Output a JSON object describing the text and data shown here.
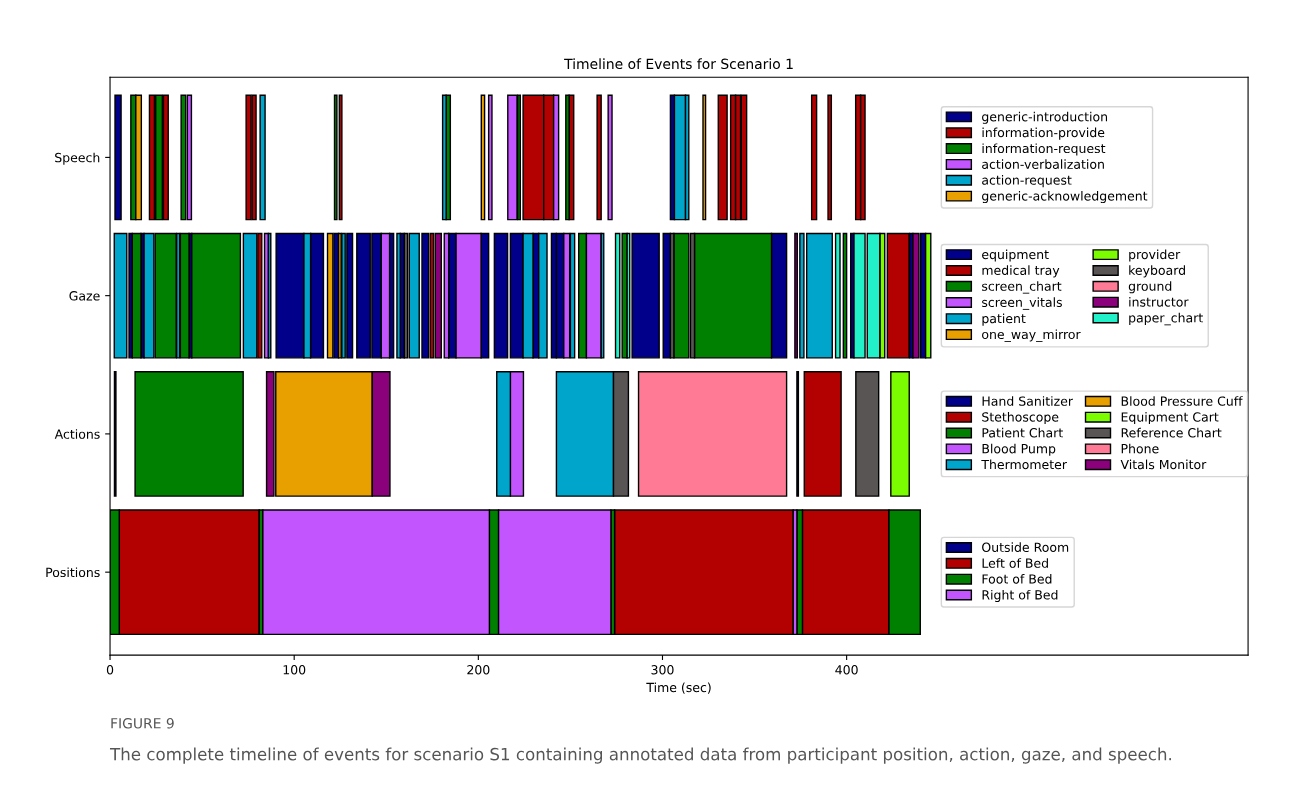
{
  "chart_data": {
    "type": "bar",
    "orientation": "horizontal",
    "title": "Timeline of Events for Scenario 1",
    "xlabel": "Time (sec)",
    "categories": [
      "Speech",
      "Gaze",
      "Actions",
      "Positions"
    ],
    "xlim": [
      0,
      618
    ],
    "xticks": [
      0,
      100,
      200,
      300,
      400
    ],
    "grid": false,
    "legend": "right",
    "annotations": [
      "FIGURE 9",
      "The complete timeline of events for scenario S1 containing annotated data from participant position, action, gaze, and speech."
    ],
    "series": [
      {
        "name": "generic-introduction",
        "color": "#00008b",
        "base": [
          2.7,
          null,
          null,
          null
        ],
        "values": [
          3.3,
          null,
          null,
          null
        ]
      },
      {
        "color": "#00008b",
        "base": [
          304.3,
          null,
          null,
          null
        ],
        "values": [
          2.2,
          null,
          null,
          null
        ]
      },
      {
        "name": "information-provide",
        "color": "#b30000",
        "base": [
          21.4,
          null,
          null,
          null
        ],
        "values": [
          2.7,
          null,
          null,
          null
        ]
      },
      {
        "color": "#b30000",
        "base": [
          29,
          null,
          null,
          null
        ],
        "values": [
          2.6,
          null,
          null,
          null
        ]
      },
      {
        "color": "#b30000",
        "base": [
          73.9,
          null,
          null,
          null
        ],
        "values": [
          2.7,
          null,
          null,
          null
        ]
      },
      {
        "color": "#b30000",
        "base": [
          77.2,
          null,
          null,
          null
        ],
        "values": [
          2.1,
          null,
          null,
          null
        ]
      },
      {
        "color": "#b30000",
        "base": [
          124.5,
          null,
          null,
          null
        ],
        "values": [
          1.4,
          null,
          null,
          null
        ]
      },
      {
        "color": "#b30000",
        "base": [
          224.3,
          null,
          null,
          null
        ],
        "values": [
          11.2,
          null,
          null,
          null
        ]
      },
      {
        "color": "#b30000",
        "base": [
          235.5,
          null,
          null,
          null
        ],
        "values": [
          5.4,
          null,
          null,
          null
        ]
      },
      {
        "color": "#b30000",
        "base": [
          249.3,
          null,
          null,
          null
        ],
        "values": [
          2.5,
          null,
          null,
          null
        ]
      },
      {
        "color": "#b30000",
        "base": [
          264.5,
          null,
          null,
          null
        ],
        "values": [
          2.2,
          null,
          null,
          null
        ]
      },
      {
        "color": "#b30000",
        "base": [
          330.3,
          null,
          null,
          null
        ],
        "values": [
          4.8,
          null,
          null,
          null
        ]
      },
      {
        "color": "#b30000",
        "base": [
          337,
          null,
          null,
          null
        ],
        "values": [
          2.7,
          null,
          null,
          null
        ]
      },
      {
        "color": "#b30000",
        "base": [
          339.7,
          null,
          null,
          null
        ],
        "values": [
          2.7,
          null,
          null,
          null
        ]
      },
      {
        "color": "#b30000",
        "base": [
          342.8,
          null,
          null,
          null
        ],
        "values": [
          2.9,
          null,
          null,
          null
        ]
      },
      {
        "color": "#b30000",
        "base": [
          381,
          null,
          null,
          null
        ],
        "values": [
          2.7,
          null,
          null,
          null
        ]
      },
      {
        "color": "#b30000",
        "base": [
          389.9,
          null,
          null,
          null
        ],
        "values": [
          1.8,
          null,
          null,
          null
        ]
      },
      {
        "color": "#b30000",
        "base": [
          404.9,
          null,
          null,
          null
        ],
        "values": [
          2.7,
          null,
          null,
          null
        ]
      },
      {
        "color": "#b30000",
        "base": [
          407.6,
          null,
          null,
          null
        ],
        "values": [
          2.4,
          null,
          null,
          null
        ]
      },
      {
        "name": "information-request",
        "color": "#008000",
        "base": [
          11.3,
          null,
          null,
          null
        ],
        "values": [
          2.7,
          null,
          null,
          null
        ]
      },
      {
        "color": "#008000",
        "base": [
          24.8,
          null,
          null,
          null
        ],
        "values": [
          3.6,
          null,
          null,
          null
        ]
      },
      {
        "color": "#008000",
        "base": [
          38.6,
          null,
          null,
          null
        ],
        "values": [
          2.5,
          null,
          null,
          null
        ]
      },
      {
        "color": "#008000",
        "base": [
          121.9,
          null,
          null,
          null
        ],
        "values": [
          1.3,
          null,
          null,
          null
        ]
      },
      {
        "color": "#008000",
        "base": [
          182.5,
          null,
          null,
          null
        ],
        "values": [
          2.3,
          null,
          null,
          null
        ]
      },
      {
        "color": "#008000",
        "base": [
          221.4,
          null,
          null,
          null
        ],
        "values": [
          1.4,
          null,
          null,
          null
        ]
      },
      {
        "color": "#008000",
        "base": [
          247.5,
          null,
          null,
          null
        ],
        "values": [
          1.8,
          null,
          null,
          null
        ]
      },
      {
        "name": "action-verbalization",
        "color": "#c355ff",
        "base": [
          42,
          null,
          null,
          null
        ],
        "values": [
          2.2,
          null,
          null,
          null
        ]
      },
      {
        "color": "#c355ff",
        "base": [
          205.6,
          null,
          null,
          null
        ],
        "values": [
          1.8,
          null,
          null,
          null
        ]
      },
      {
        "color": "#c355ff",
        "base": [
          216,
          null,
          null,
          null
        ],
        "values": [
          5,
          null,
          null,
          null
        ]
      },
      {
        "color": "#c355ff",
        "base": [
          240.9,
          null,
          null,
          null
        ],
        "values": [
          2.7,
          null,
          null,
          null
        ]
      },
      {
        "color": "#c355ff",
        "base": [
          270.5,
          null,
          null,
          null
        ],
        "values": [
          2.1,
          null,
          null,
          null
        ]
      },
      {
        "name": "action-request",
        "color": "#00a5cc",
        "base": [
          81.5,
          null,
          null,
          null
        ],
        "values": [
          2.7,
          null,
          null,
          null
        ]
      },
      {
        "color": "#00a5cc",
        "base": [
          180.6,
          null,
          null,
          null
        ],
        "values": [
          1.9,
          null,
          null,
          null
        ]
      },
      {
        "color": "#00a5cc",
        "base": [
          306.5,
          null,
          null,
          null
        ],
        "values": [
          6,
          null,
          null,
          null
        ]
      },
      {
        "color": "#00a5cc",
        "base": [
          312.5,
          null,
          null,
          null
        ],
        "values": [
          1.8,
          null,
          null,
          null
        ]
      },
      {
        "name": "generic-acknowledgement",
        "color": "#e8a000",
        "base": [
          14,
          null,
          null,
          null
        ],
        "values": [
          3,
          null,
          null,
          null
        ]
      },
      {
        "color": "#e8a000",
        "base": [
          201.6,
          null,
          null,
          null
        ],
        "values": [
          1.8,
          null,
          null,
          null
        ]
      },
      {
        "color": "#e8a000",
        "base": [
          322,
          null,
          null,
          null
        ],
        "values": [
          1.4,
          null,
          null,
          null
        ]
      },
      {
        "name": "equipment",
        "color": "#00008b",
        "base": [
          null,
          10.3,
          null,
          null
        ],
        "values": [
          null,
          1.8,
          null,
          null
        ]
      },
      {
        "color": "#00008b",
        "base": [
          null,
          16.8,
          null,
          null
        ],
        "values": [
          null,
          1.7,
          null,
          null
        ]
      },
      {
        "color": "#00008b",
        "base": [
          null,
          42.9,
          null,
          null
        ],
        "values": [
          null,
          1.5,
          null,
          null
        ]
      },
      {
        "color": "#00008b",
        "base": [
          null,
          90.2,
          null,
          null
        ],
        "values": [
          null,
          15.1,
          null,
          null
        ]
      },
      {
        "color": "#00008b",
        "base": [
          null,
          108.9,
          null,
          null
        ],
        "values": [
          null,
          7,
          null,
          null
        ]
      },
      {
        "color": "#00008b",
        "base": [
          null,
          121.6,
          null,
          null
        ],
        "values": [
          null,
          2.5,
          null,
          null
        ]
      },
      {
        "color": "#00008b",
        "base": [
          null,
          128.6,
          null,
          null
        ],
        "values": [
          null,
          3.1,
          null,
          null
        ]
      },
      {
        "color": "#00008b",
        "base": [
          null,
          134,
          null,
          null
        ],
        "values": [
          null,
          7.3,
          null,
          null
        ]
      },
      {
        "color": "#00008b",
        "base": [
          null,
          142.2,
          null,
          null
        ],
        "values": [
          null,
          5.1,
          null,
          null
        ]
      },
      {
        "color": "#00008b",
        "base": [
          null,
          151.8,
          null,
          null
        ],
        "values": [
          null,
          2.2,
          null,
          null
        ]
      },
      {
        "color": "#00008b",
        "base": [
          null,
          157.6,
          null,
          null
        ],
        "values": [
          null,
          2.2,
          null,
          null
        ]
      },
      {
        "color": "#00008b",
        "base": [
          null,
          169.4,
          null,
          null
        ],
        "values": [
          null,
          3.6,
          null,
          null
        ]
      },
      {
        "color": "#00008b",
        "base": [
          null,
          183.9,
          null,
          null
        ],
        "values": [
          null,
          4,
          null,
          null
        ]
      },
      {
        "color": "#00008b",
        "base": [
          null,
          201.5,
          null,
          null
        ],
        "values": [
          null,
          4.1,
          null,
          null
        ]
      },
      {
        "color": "#00008b",
        "base": [
          null,
          208.7,
          null,
          null
        ],
        "values": [
          null,
          7.2,
          null,
          null
        ]
      },
      {
        "color": "#00008b",
        "base": [
          null,
          217.4,
          null,
          null
        ],
        "values": [
          null,
          6.9,
          null,
          null
        ]
      },
      {
        "color": "#00008b",
        "base": [
          null,
          229.7,
          null,
          null
        ],
        "values": [
          null,
          3.1,
          null,
          null
        ]
      },
      {
        "color": "#00008b",
        "base": [
          null,
          239.7,
          null,
          null
        ],
        "values": [
          null,
          2.7,
          null,
          null
        ]
      },
      {
        "color": "#00008b",
        "base": [
          null,
          242.4,
          null,
          null
        ],
        "values": [
          null,
          4,
          null,
          null
        ]
      },
      {
        "color": "#00008b",
        "base": [
          null,
          283.5,
          null,
          null
        ],
        "values": [
          null,
          14.7,
          null,
          null
        ]
      },
      {
        "color": "#00008b",
        "base": [
          null,
          300.4,
          null,
          null
        ],
        "values": [
          null,
          3.9,
          null,
          null
        ]
      },
      {
        "color": "#00008b",
        "base": [
          null,
          359.2,
          null,
          null
        ],
        "values": [
          null,
          8.2,
          null,
          null
        ]
      },
      {
        "color": "#00008b",
        "base": [
          null,
          402.2,
          null,
          null
        ],
        "values": [
          null,
          1.8,
          null,
          null
        ]
      },
      {
        "color": "#00008b",
        "base": [
          null,
          434.2,
          null,
          null
        ],
        "values": [
          null,
          1.8,
          null,
          null
        ]
      },
      {
        "color": "#00008b",
        "base": [
          null,
          440.2,
          null,
          null
        ],
        "values": [
          null,
          2.7,
          null,
          null
        ]
      },
      {
        "name": "medical tray",
        "color": "#b30000",
        "base": [
          null,
          80.3,
          null,
          null
        ],
        "values": [
          null,
          2.1,
          null,
          null
        ]
      },
      {
        "color": "#b30000",
        "base": [
          null,
          173.9,
          null,
          null
        ],
        "values": [
          null,
          1.8,
          null,
          null
        ]
      },
      {
        "color": "#b30000",
        "base": [
          null,
          422.1,
          null,
          null
        ],
        "values": [
          null,
          11.8,
          null,
          null
        ]
      },
      {
        "name": "screen_chart",
        "color": "#008000",
        "base": [
          null,
          12.1,
          null,
          null
        ],
        "values": [
          null,
          4.7,
          null,
          null
        ]
      },
      {
        "color": "#008000",
        "base": [
          null,
          24.5,
          null,
          null
        ],
        "values": [
          null,
          11.4,
          null,
          null
        ]
      },
      {
        "color": "#008000",
        "base": [
          null,
          38.2,
          null,
          null
        ],
        "values": [
          null,
          4.7,
          null,
          null
        ]
      },
      {
        "color": "#008000",
        "base": [
          null,
          44.4,
          null,
          null
        ],
        "values": [
          null,
          26.4,
          null,
          null
        ]
      },
      {
        "color": "#008000",
        "base": [
          null,
          254.5,
          null,
          null
        ],
        "values": [
          null,
          4.2,
          null,
          null
        ]
      },
      {
        "color": "#008000",
        "base": [
          null,
          278.1,
          null,
          null
        ],
        "values": [
          null,
          2.7,
          null,
          null
        ]
      },
      {
        "color": "#008000",
        "base": [
          null,
          306.2,
          null,
          null
        ],
        "values": [
          null,
          8.1,
          null,
          null
        ]
      },
      {
        "color": "#008000",
        "base": [
          null,
          317.4,
          null,
          null
        ],
        "values": [
          null,
          41.8,
          null,
          null
        ]
      },
      {
        "color": "#008000",
        "base": [
          null,
          398.2,
          null,
          null
        ],
        "values": [
          null,
          1.8,
          null,
          null
        ]
      },
      {
        "name": "screen_vitals",
        "color": "#c355ff",
        "base": [
          null,
          83.9,
          null,
          null
        ],
        "values": [
          null,
          2.1,
          null,
          null
        ]
      },
      {
        "color": "#c355ff",
        "base": [
          null,
          147.3,
          null,
          null
        ],
        "values": [
          null,
          4.5,
          null,
          null
        ]
      },
      {
        "color": "#c355ff",
        "base": [
          null,
          181.5,
          null,
          null
        ],
        "values": [
          null,
          2.4,
          null,
          null
        ]
      },
      {
        "color": "#c355ff",
        "base": [
          null,
          187.9,
          null,
          null
        ],
        "values": [
          null,
          13.6,
          null,
          null
        ]
      },
      {
        "color": "#c355ff",
        "base": [
          null,
          246.4,
          null,
          null
        ],
        "values": [
          null,
          3.2,
          null,
          null
        ]
      },
      {
        "color": "#c355ff",
        "base": [
          null,
          258.7,
          null,
          null
        ],
        "values": [
          null,
          8,
          null,
          null
        ]
      },
      {
        "name": "patient",
        "color": "#00a5cc",
        "base": [
          null,
          2.3,
          null,
          null
        ],
        "values": [
          null,
          6.8,
          null,
          null
        ]
      },
      {
        "color": "#00a5cc",
        "base": [
          null,
          18.5,
          null,
          null
        ],
        "values": [
          null,
          5.3,
          null,
          null
        ]
      },
      {
        "color": "#00a5cc",
        "base": [
          null,
          36.2,
          null,
          null
        ],
        "values": [
          null,
          1.6,
          null,
          null
        ]
      },
      {
        "color": "#00a5cc",
        "base": [
          null,
          72.4,
          null,
          null
        ],
        "values": [
          null,
          7.3,
          null,
          null
        ]
      },
      {
        "color": "#00a5cc",
        "base": [
          null,
          86,
          null,
          null
        ],
        "values": [
          null,
          1.3,
          null,
          null
        ]
      },
      {
        "color": "#00a5cc",
        "base": [
          null,
          105.3,
          null,
          null
        ],
        "values": [
          null,
          3.6,
          null,
          null
        ]
      },
      {
        "color": "#00a5cc",
        "base": [
          null,
          125.9,
          null,
          null
        ],
        "values": [
          null,
          1.8,
          null,
          null
        ]
      },
      {
        "color": "#00a5cc",
        "base": [
          null,
          155.8,
          null,
          null
        ],
        "values": [
          null,
          1.8,
          null,
          null
        ]
      },
      {
        "color": "#00a5cc",
        "base": [
          null,
          162.5,
          null,
          null
        ],
        "values": [
          null,
          5.4,
          null,
          null
        ]
      },
      {
        "color": "#00a5cc",
        "base": [
          null,
          224.3,
          null,
          null
        ],
        "values": [
          null,
          5.4,
          null,
          null
        ]
      },
      {
        "color": "#00a5cc",
        "base": [
          null,
          232.8,
          null,
          null
        ],
        "values": [
          null,
          4.5,
          null,
          null
        ]
      },
      {
        "color": "#00a5cc",
        "base": [
          null,
          250,
          null,
          null
        ],
        "values": [
          null,
          2.3,
          null,
          null
        ]
      },
      {
        "color": "#00a5cc",
        "base": [
          null,
          266.7,
          null,
          null
        ],
        "values": [
          null,
          1.4,
          null,
          null
        ]
      },
      {
        "color": "#00a5cc",
        "base": [
          null,
          374.6,
          null,
          null
        ],
        "values": [
          null,
          2.2,
          null,
          null
        ]
      },
      {
        "color": "#00a5cc",
        "base": [
          null,
          378.3,
          null,
          null
        ],
        "values": [
          null,
          13.9,
          null,
          null
        ]
      },
      {
        "name": "one_way_mirror",
        "color": "#e8a000",
        "base": [
          null,
          118.1,
          null,
          null
        ],
        "values": [
          null,
          2.9,
          null,
          null
        ]
      },
      {
        "color": "#e8a000",
        "base": [
          null,
          124.1,
          null,
          null
        ],
        "values": [
          null,
          1.4,
          null,
          null
        ]
      },
      {
        "name": "provider",
        "color": "#7cfc00",
        "base": [
          null,
          418.1,
          null,
          null
        ],
        "values": [
          null,
          2.6,
          null,
          null
        ]
      },
      {
        "color": "#7cfc00",
        "base": [
          null,
          442.9,
          null,
          null
        ],
        "values": [
          null,
          2.8,
          null,
          null
        ]
      },
      {
        "name": "keyboard",
        "color": "#595555",
        "base": [
          null,
          159.8,
          null,
          null
        ],
        "values": [
          null,
          1.8,
          null,
          null
        ]
      },
      {
        "color": "#595555",
        "base": [
          null,
          304.3,
          null,
          null
        ],
        "values": [
          null,
          1.9,
          null,
          null
        ]
      },
      {
        "color": "#595555",
        "base": [
          null,
          315.2,
          null,
          null
        ],
        "values": [
          null,
          2.2,
          null,
          null
        ]
      },
      {
        "name": "ground",
        "color": "#ff7a95",
        "base": [
          null,
          null,
          null,
          null
        ],
        "values": [
          null,
          null,
          null,
          null
        ]
      },
      {
        "name": "instructor",
        "color": "#8b007b",
        "base": [
          null,
          176.6,
          null,
          null
        ],
        "values": [
          null,
          3.3,
          null,
          null
        ]
      },
      {
        "color": "#8b007b",
        "base": [
          null,
          371.9,
          null,
          null
        ],
        "values": [
          null,
          1.3,
          null,
          null
        ]
      },
      {
        "color": "#8b007b",
        "base": [
          null,
          436,
          null,
          null
        ],
        "values": [
          null,
          3.3,
          null,
          null
        ]
      },
      {
        "name": "paper_chart",
        "color": "#22f0c8",
        "base": [
          null,
          274.5,
          null,
          null
        ],
        "values": [
          null,
          2.3,
          null,
          null
        ]
      },
      {
        "color": "#22f0c8",
        "base": [
          null,
          280.8,
          null,
          null
        ],
        "values": [
          null,
          1.4,
          null,
          null
        ]
      },
      {
        "color": "#22f0c8",
        "base": [
          null,
          394,
          null,
          null
        ],
        "values": [
          null,
          2.4,
          null,
          null
        ]
      },
      {
        "color": "#22f0c8",
        "base": [
          null,
          404,
          null,
          null
        ],
        "values": [
          null,
          6,
          null,
          null
        ]
      },
      {
        "color": "#22f0c8",
        "base": [
          null,
          411.2,
          null,
          null
        ],
        "values": [
          null,
          6.8,
          null,
          null
        ]
      },
      {
        "name": "Hand Sanitizer",
        "color": "#00008b",
        "base": [
          null,
          null,
          2.4,
          null
        ],
        "values": [
          null,
          null,
          0.8,
          null
        ]
      },
      {
        "color": "#00008b",
        "base": [
          null,
          null,
          373,
          null
        ],
        "values": [
          null,
          null,
          0.8,
          null
        ]
      },
      {
        "name": "Stethoscope",
        "color": "#b30000",
        "base": [
          null,
          null,
          377,
          null
        ],
        "values": [
          null,
          null,
          20,
          null
        ]
      },
      {
        "name": "Patient Chart",
        "color": "#008000",
        "base": [
          null,
          null,
          13.6,
          null
        ],
        "values": [
          null,
          null,
          58.7,
          null
        ]
      },
      {
        "name": "Blood Pump",
        "color": "#c355ff",
        "base": [
          null,
          null,
          217.4,
          null
        ],
        "values": [
          null,
          null,
          7.1,
          null
        ]
      },
      {
        "name": "Thermometer",
        "color": "#00a5cc",
        "base": [
          null,
          null,
          210,
          null
        ],
        "values": [
          null,
          null,
          7.4,
          null
        ]
      },
      {
        "color": "#00a5cc",
        "base": [
          null,
          null,
          242.4,
          null
        ],
        "values": [
          null,
          null,
          31,
          null
        ]
      },
      {
        "name": "Blood Pressure Cuff",
        "color": "#e8a000",
        "base": [
          null,
          null,
          90,
          null
        ],
        "values": [
          null,
          null,
          52.4,
          null
        ]
      },
      {
        "name": "Equipment Cart",
        "color": "#7cfc00",
        "base": [
          null,
          null,
          424,
          null
        ],
        "values": [
          null,
          null,
          10,
          null
        ]
      },
      {
        "name": "Reference Chart",
        "color": "#595555",
        "base": [
          null,
          null,
          273.4,
          null
        ],
        "values": [
          null,
          null,
          8.1,
          null
        ]
      },
      {
        "color": "#595555",
        "base": [
          null,
          null,
          405,
          null
        ],
        "values": [
          null,
          null,
          12.4,
          null
        ]
      },
      {
        "name": "Phone",
        "color": "#ff7a95",
        "base": [
          null,
          null,
          287,
          null
        ],
        "values": [
          null,
          null,
          80.4,
          null
        ]
      },
      {
        "name": "Vitals Monitor",
        "color": "#8b007b",
        "base": [
          null,
          null,
          85,
          null
        ],
        "values": [
          null,
          null,
          4,
          null
        ]
      },
      {
        "color": "#8b007b",
        "base": [
          null,
          null,
          142.4,
          null
        ],
        "values": [
          null,
          null,
          9.6,
          null
        ]
      },
      {
        "name": "Outside Room",
        "color": "#00008b",
        "base": [
          null,
          null,
          null,
          null
        ],
        "values": [
          null,
          null,
          null,
          null
        ]
      },
      {
        "name": "Left of Bed",
        "color": "#b30000",
        "base": [
          null,
          null,
          null,
          5
        ],
        "values": [
          null,
          null,
          null,
          76
        ]
      },
      {
        "color": "#b30000",
        "base": [
          null,
          null,
          null,
          274
        ],
        "values": [
          null,
          null,
          null,
          97
        ]
      },
      {
        "color": "#b30000",
        "base": [
          null,
          null,
          null,
          376
        ],
        "values": [
          null,
          null,
          null,
          47
        ]
      },
      {
        "name": "Foot of Bed",
        "color": "#008000",
        "base": [
          null,
          null,
          null,
          0
        ],
        "values": [
          null,
          null,
          null,
          5
        ]
      },
      {
        "color": "#008000",
        "base": [
          null,
          null,
          null,
          81
        ],
        "values": [
          null,
          null,
          null,
          2
        ]
      },
      {
        "color": "#008000",
        "base": [
          null,
          null,
          null,
          206
        ],
        "values": [
          null,
          null,
          null,
          5
        ]
      },
      {
        "color": "#008000",
        "base": [
          null,
          null,
          null,
          272
        ],
        "values": [
          null,
          null,
          null,
          2
        ]
      },
      {
        "color": "#008000",
        "base": [
          null,
          null,
          null,
          373
        ],
        "values": [
          null,
          null,
          null,
          3
        ]
      },
      {
        "color": "#008000",
        "base": [
          null,
          null,
          null,
          423
        ],
        "values": [
          null,
          null,
          null,
          17
        ]
      },
      {
        "name": "Right of Bed",
        "color": "#c355ff",
        "base": [
          null,
          null,
          null,
          83
        ],
        "values": [
          null,
          null,
          null,
          123
        ]
      },
      {
        "color": "#c355ff",
        "base": [
          null,
          null,
          null,
          211
        ],
        "values": [
          null,
          null,
          null,
          61
        ]
      },
      {
        "color": "#c355ff",
        "base": [
          null,
          null,
          null,
          371
        ],
        "values": [
          null,
          null,
          null,
          2
        ]
      }
    ]
  }
}
